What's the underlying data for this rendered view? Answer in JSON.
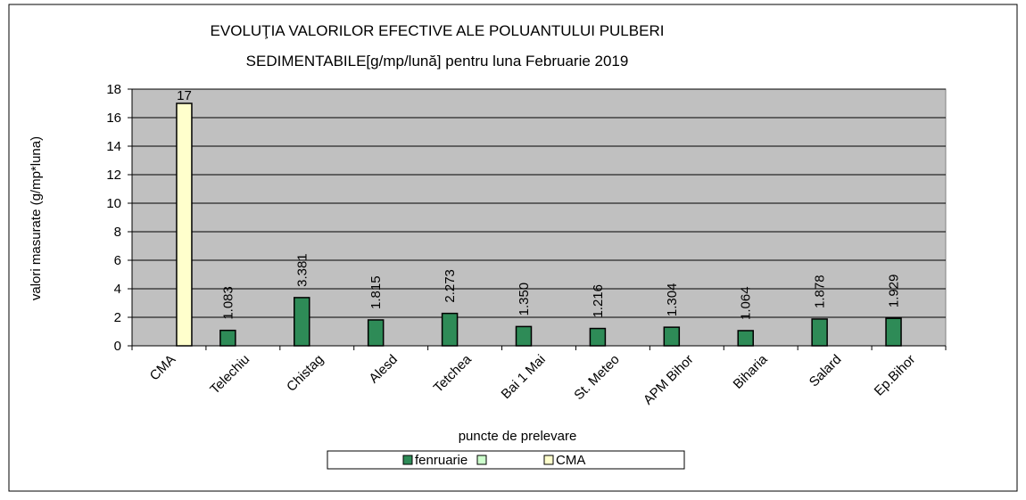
{
  "chart_data": {
    "type": "bar",
    "title": "EVOLUŢIA VALORILOR EFECTIVE ALE POLUANTULUI PULBERI",
    "subtitle": "SEDIMENTABILE[g/mp/lună] pentru luna Februarie 2019",
    "x_label": "puncte de prelevare",
    "y_label": "valori masurate (g/mp*luna)",
    "categories": [
      "CMA",
      "Telechiu",
      "Chistag",
      "Alesd",
      "Tetchea",
      "Bai 1 Mai",
      "St. Meteo",
      "APM Bihor",
      "Biharia",
      "Salard",
      "Ep.Bihor"
    ],
    "series": [
      {
        "name": "fenruarie",
        "color": "#2e8b57",
        "values": [
          null,
          1.083,
          3.381,
          1.815,
          2.273,
          1.35,
          1.216,
          1.304,
          1.064,
          1.878,
          1.929
        ],
        "value_labels": [
          null,
          "1.083",
          "3.381",
          "1.815",
          "2.273",
          "1.350",
          "1.216",
          "1.304",
          "1.064",
          "1.878",
          "1.929"
        ]
      },
      {
        "name": "CMA",
        "color": "#ffffcc",
        "values": [
          17,
          null,
          null,
          null,
          null,
          null,
          null,
          null,
          null,
          null,
          null
        ]
      }
    ],
    "ylim": [
      0,
      18
    ],
    "yticks": [
      0,
      2,
      4,
      6,
      8,
      10,
      12,
      14,
      16,
      18
    ],
    "grid": true
  }
}
